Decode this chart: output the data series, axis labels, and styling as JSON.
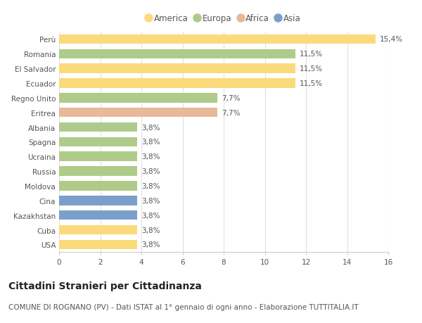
{
  "countries": [
    "Perù",
    "Romania",
    "El Salvador",
    "Ecuador",
    "Regno Unito",
    "Eritrea",
    "Albania",
    "Spagna",
    "Ucraina",
    "Russia",
    "Moldova",
    "Cina",
    "Kazakhstan",
    "Cuba",
    "USA"
  ],
  "values": [
    15.4,
    11.5,
    11.5,
    11.5,
    7.7,
    7.7,
    3.8,
    3.8,
    3.8,
    3.8,
    3.8,
    3.8,
    3.8,
    3.8,
    3.8
  ],
  "labels": [
    "15,4%",
    "11,5%",
    "11,5%",
    "11,5%",
    "7,7%",
    "7,7%",
    "3,8%",
    "3,8%",
    "3,8%",
    "3,8%",
    "3,8%",
    "3,8%",
    "3,8%",
    "3,8%",
    "3,8%"
  ],
  "bar_colors": [
    "#FADA7A",
    "#AECB8A",
    "#FADA7A",
    "#FADA7A",
    "#AECB8A",
    "#E8B899",
    "#AECB8A",
    "#AECB8A",
    "#AECB8A",
    "#AECB8A",
    "#AECB8A",
    "#7B9FCC",
    "#7B9FCC",
    "#FADA7A",
    "#FADA7A"
  ],
  "legend_labels": [
    "America",
    "Europa",
    "Africa",
    "Asia"
  ],
  "legend_colors": [
    "#FADA7A",
    "#AECB8A",
    "#E8B899",
    "#7B9FCC"
  ],
  "title": "Cittadini Stranieri per Cittadinanza",
  "subtitle": "COMUNE DI ROGNANO (PV) - Dati ISTAT al 1° gennaio di ogni anno - Elaborazione TUTTITALIA.IT",
  "xlim": [
    0,
    16
  ],
  "xticks": [
    0,
    2,
    4,
    6,
    8,
    10,
    12,
    14,
    16
  ],
  "background_color": "#FFFFFF",
  "grid_color": "#E0E0E0",
  "bar_height": 0.65,
  "label_fontsize": 7.5,
  "tick_fontsize": 7.5,
  "title_fontsize": 10,
  "subtitle_fontsize": 7.5
}
